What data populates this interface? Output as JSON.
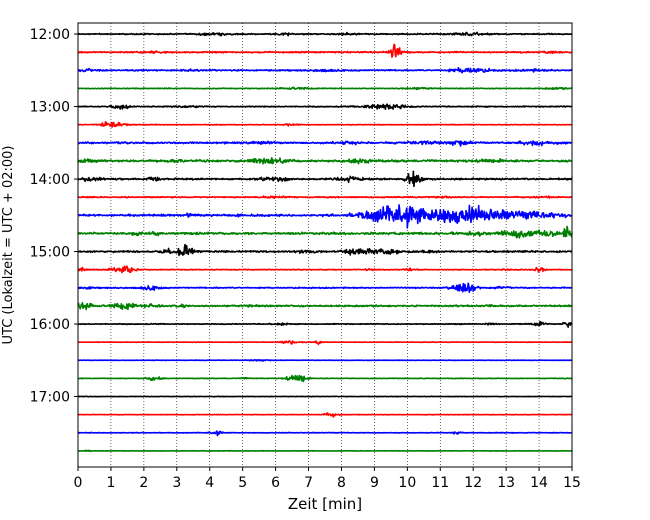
{
  "chart_data": {
    "type": "line",
    "title": "",
    "xlabel": "Zeit  [min]",
    "ylabel": "UTC (Lokalzeit = UTC + 02:00)",
    "xlim": [
      0,
      15
    ],
    "x_ticks": [
      "0",
      "1",
      "2",
      "3",
      "4",
      "5",
      "6",
      "7",
      "8",
      "9",
      "10",
      "11",
      "12",
      "13",
      "14",
      "15"
    ],
    "y_tick_labels": [
      "12:00",
      "13:00",
      "14:00",
      "15:00",
      "16:00",
      "17:00"
    ],
    "grid": "vertical dotted lines at each minute",
    "trace_interval_min": 15,
    "trace_colors": [
      "#000000",
      "#ff0000",
      "#0000ff",
      "#008000"
    ],
    "traces": [
      {
        "start": "12:00",
        "color": "#000000",
        "noise": 0.7,
        "events": [
          [
            4.1,
            1.2,
            0.3
          ],
          [
            6.3,
            1.0,
            0.2
          ],
          [
            11.7,
            1.1,
            0.3
          ],
          [
            12.3,
            1.0,
            0.2
          ],
          [
            8.2,
            0.9,
            0.2
          ]
        ]
      },
      {
        "start": "12:15",
        "color": "#ff0000",
        "noise": 0.8,
        "events": [
          [
            9.6,
            7.0,
            0.12
          ],
          [
            9.7,
            5.0,
            0.1
          ],
          [
            2.3,
            0.9,
            0.3
          ],
          [
            14.3,
            0.9,
            0.2
          ]
        ]
      },
      {
        "start": "12:30",
        "color": "#0000ff",
        "noise": 0.8,
        "events": [
          [
            11.9,
            3.0,
            0.4
          ],
          [
            7.6,
            1.2,
            0.3
          ],
          [
            0.3,
            1.4,
            0.2
          ],
          [
            3.6,
            1.0,
            0.2
          ],
          [
            13.8,
            1.0,
            0.3
          ]
        ]
      },
      {
        "start": "12:45",
        "color": "#008000",
        "noise": 0.5,
        "events": [
          [
            6.6,
            1.1,
            0.3
          ],
          [
            10.3,
            1.0,
            0.3
          ],
          [
            14.5,
            1.0,
            0.2
          ]
        ]
      },
      {
        "start": "13:00",
        "color": "#000000",
        "noise": 0.6,
        "events": [
          [
            1.3,
            4.5,
            0.15
          ],
          [
            9.4,
            3.5,
            0.35
          ],
          [
            3.3,
            1.0,
            0.3
          ],
          [
            8.8,
            1.0,
            0.2
          ]
        ]
      },
      {
        "start": "13:15",
        "color": "#ff0000",
        "noise": 0.4,
        "events": [
          [
            0.95,
            5.0,
            0.18
          ],
          [
            1.3,
            1.2,
            0.2
          ],
          [
            6.4,
            0.9,
            0.2
          ]
        ]
      },
      {
        "start": "13:30",
        "color": "#0000ff",
        "noise": 1.0,
        "events": [
          [
            11.6,
            3.0,
            0.2
          ],
          [
            13.9,
            2.0,
            0.4
          ],
          [
            10.5,
            1.5,
            0.4
          ],
          [
            5.6,
            1.2,
            0.3
          ],
          [
            8.3,
            1.2,
            0.3
          ]
        ]
      },
      {
        "start": "13:45",
        "color": "#008000",
        "noise": 1.3,
        "events": [
          [
            5.6,
            2.5,
            0.3
          ],
          [
            6.2,
            2.5,
            0.2
          ],
          [
            8.6,
            2.2,
            0.3
          ],
          [
            0.2,
            2.0,
            0.2
          ],
          [
            2.9,
            1.5,
            0.2
          ],
          [
            12.6,
            1.5,
            0.3
          ]
        ]
      },
      {
        "start": "14:00",
        "color": "#000000",
        "noise": 1.0,
        "events": [
          [
            10.2,
            7.5,
            0.15
          ],
          [
            8.3,
            2.2,
            0.3
          ],
          [
            0.4,
            2.2,
            0.2
          ],
          [
            2.3,
            1.8,
            0.15
          ],
          [
            5.8,
            1.5,
            0.2
          ],
          [
            6.2,
            1.2,
            0.15
          ]
        ]
      },
      {
        "start": "14:15",
        "color": "#ff0000",
        "noise": 0.7,
        "events": [
          [
            6.0,
            1.0,
            0.3
          ],
          [
            11.0,
            1.0,
            0.2
          ],
          [
            14.1,
            0.8,
            0.2
          ]
        ]
      },
      {
        "start": "14:30",
        "color": "#0000ff",
        "noise": 1.2,
        "events": [
          [
            10.0,
            11.0,
            0.7
          ],
          [
            11.6,
            9.0,
            0.6
          ],
          [
            9.0,
            4.0,
            0.4
          ],
          [
            12.8,
            3.5,
            0.8
          ],
          [
            14.0,
            2.5,
            0.6
          ],
          [
            3.4,
            1.2,
            0.1
          ],
          [
            4.9,
            1.2,
            0.1
          ]
        ]
      },
      {
        "start": "14:45",
        "color": "#008000",
        "noise": 1.3,
        "events": [
          [
            14.9,
            8.0,
            0.12
          ],
          [
            13.3,
            4.5,
            0.3
          ],
          [
            14.2,
            3.0,
            0.4
          ],
          [
            12.1,
            2.0,
            0.3
          ],
          [
            1.8,
            1.8,
            0.1
          ],
          [
            2.4,
            1.5,
            0.1
          ]
        ]
      },
      {
        "start": "15:00",
        "color": "#000000",
        "noise": 1.0,
        "events": [
          [
            3.3,
            6.0,
            0.15
          ],
          [
            3.0,
            4.5,
            0.12
          ],
          [
            2.7,
            2.5,
            0.15
          ],
          [
            8.4,
            3.0,
            0.25
          ],
          [
            9.3,
            3.0,
            0.35
          ],
          [
            6.9,
            1.8,
            0.2
          ],
          [
            10.7,
            1.5,
            0.15
          ]
        ]
      },
      {
        "start": "15:15",
        "color": "#ff0000",
        "noise": 0.5,
        "events": [
          [
            1.4,
            5.0,
            0.25
          ],
          [
            14.0,
            2.5,
            0.12
          ],
          [
            10.1,
            1.8,
            0.12
          ],
          [
            13.0,
            1.5,
            0.1
          ],
          [
            0.1,
            2.0,
            0.1
          ],
          [
            8.9,
            1.2,
            0.1
          ]
        ]
      },
      {
        "start": "15:30",
        "color": "#0000ff",
        "noise": 0.7,
        "events": [
          [
            11.8,
            5.0,
            0.2
          ],
          [
            11.5,
            3.5,
            0.15
          ],
          [
            2.2,
            3.0,
            0.2
          ],
          [
            12.8,
            1.2,
            0.2
          ],
          [
            0.3,
            1.2,
            0.1
          ]
        ]
      },
      {
        "start": "15:45",
        "color": "#008000",
        "noise": 1.0,
        "events": [
          [
            0.15,
            4.0,
            0.2
          ],
          [
            1.4,
            4.0,
            0.25
          ],
          [
            3.1,
            2.0,
            0.1
          ],
          [
            2.3,
            1.5,
            0.2
          ],
          [
            12.5,
            1.2,
            0.1
          ],
          [
            5.3,
            1.0,
            0.2
          ]
        ]
      },
      {
        "start": "16:00",
        "color": "#000000",
        "noise": 0.5,
        "events": [
          [
            14.9,
            3.0,
            0.12
          ],
          [
            14.0,
            2.5,
            0.15
          ],
          [
            12.5,
            1.2,
            0.1
          ],
          [
            6.1,
            1.0,
            0.2
          ]
        ]
      },
      {
        "start": "16:15",
        "color": "#ff0000",
        "noise": 0.3,
        "events": [
          [
            6.5,
            2.0,
            0.2
          ],
          [
            7.3,
            3.5,
            0.06
          ]
        ]
      },
      {
        "start": "16:30",
        "color": "#0000ff",
        "noise": 0.3,
        "events": [
          [
            5.5,
            0.8,
            0.2
          ]
        ]
      },
      {
        "start": "16:45",
        "color": "#008000",
        "noise": 0.4,
        "events": [
          [
            6.8,
            5.5,
            0.12
          ],
          [
            6.5,
            3.0,
            0.15
          ],
          [
            2.3,
            3.0,
            0.15
          ],
          [
            5.1,
            0.9,
            0.1
          ]
        ]
      },
      {
        "start": "17:00",
        "color": "#000000",
        "noise": 0.3,
        "events": []
      },
      {
        "start": "17:15",
        "color": "#ff0000",
        "noise": 0.3,
        "events": [
          [
            7.7,
            2.5,
            0.15
          ]
        ]
      },
      {
        "start": "17:30",
        "color": "#0000ff",
        "noise": 0.4,
        "events": [
          [
            4.2,
            2.5,
            0.12
          ],
          [
            11.5,
            1.2,
            0.1
          ]
        ]
      },
      {
        "start": "17:45",
        "color": "#008000",
        "noise": 0.3,
        "events": [
          [
            0.3,
            0.8,
            0.1
          ]
        ]
      }
    ]
  }
}
